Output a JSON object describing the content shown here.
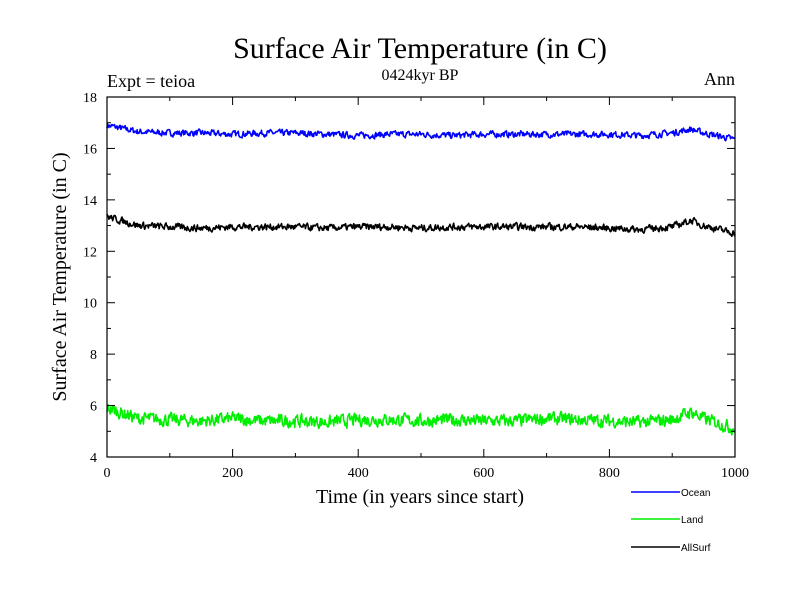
{
  "chart_data": {
    "type": "line",
    "title": "Surface Air Temperature (in C)",
    "subtitle": "0424kyr BP",
    "left_note": "Expt = teioa",
    "right_note": "Ann",
    "xlabel": "Time (in years since start)",
    "ylabel": "Surface Air Temperature (in C)",
    "xlim": [
      0,
      1000
    ],
    "ylim": [
      4,
      18
    ],
    "xticks": [
      0,
      200,
      400,
      600,
      800,
      1000
    ],
    "yticks": [
      4,
      6,
      8,
      10,
      12,
      14,
      16,
      18
    ],
    "grid": false,
    "legend_position": "bottom-right outside",
    "series": [
      {
        "name": "Ocean",
        "color": "#0000ff",
        "x": [
          0,
          50,
          100,
          150,
          200,
          250,
          300,
          350,
          400,
          450,
          500,
          550,
          600,
          650,
          700,
          750,
          800,
          850,
          900,
          930,
          950,
          1000
        ],
        "values": [
          16.9,
          16.65,
          16.6,
          16.6,
          16.55,
          16.6,
          16.6,
          16.55,
          16.5,
          16.55,
          16.55,
          16.5,
          16.55,
          16.55,
          16.55,
          16.55,
          16.55,
          16.5,
          16.6,
          16.75,
          16.6,
          16.35
        ]
      },
      {
        "name": "Land",
        "color": "#00ee00",
        "x": [
          0,
          50,
          100,
          150,
          200,
          250,
          300,
          350,
          400,
          450,
          500,
          550,
          600,
          650,
          700,
          750,
          800,
          850,
          900,
          930,
          950,
          1000
        ],
        "values": [
          5.9,
          5.5,
          5.45,
          5.4,
          5.5,
          5.4,
          5.4,
          5.35,
          5.45,
          5.45,
          5.4,
          5.45,
          5.4,
          5.4,
          5.5,
          5.45,
          5.4,
          5.35,
          5.45,
          5.75,
          5.5,
          5.1
        ]
      },
      {
        "name": "AllSurf",
        "color": "#000000",
        "x": [
          0,
          50,
          100,
          150,
          200,
          250,
          300,
          350,
          400,
          450,
          500,
          550,
          600,
          650,
          700,
          750,
          800,
          850,
          900,
          930,
          950,
          1000
        ],
        "values": [
          13.35,
          13.0,
          12.95,
          12.9,
          12.95,
          12.95,
          12.95,
          12.9,
          12.95,
          12.95,
          12.9,
          12.95,
          12.95,
          12.95,
          12.95,
          12.95,
          12.9,
          12.85,
          12.95,
          13.2,
          13.0,
          12.7
        ]
      }
    ]
  }
}
